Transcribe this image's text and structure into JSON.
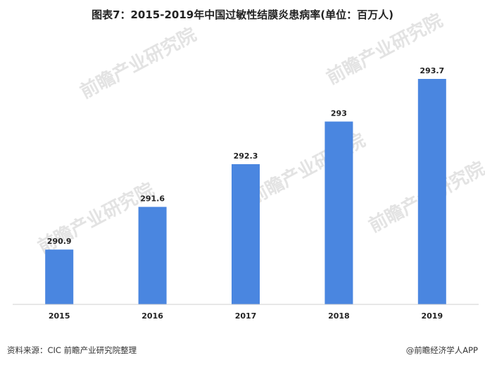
{
  "chart_data": {
    "type": "bar",
    "title": "图表7：2015-2019年中国过敏性结膜炎患病率(单位：百万人)",
    "categories": [
      "2015",
      "2016",
      "2017",
      "2018",
      "2019"
    ],
    "values": [
      290.9,
      291.6,
      292.3,
      293,
      293.7
    ],
    "value_labels": [
      "290.9",
      "291.6",
      "292.3",
      "293",
      "293.7"
    ],
    "ylim": [
      290,
      294
    ],
    "grid": false,
    "bar_color": "#4a86e0"
  },
  "footer": {
    "source": "资料来源：CIC 前瞻产业研究院整理",
    "brand": "@前瞻经济学人APP"
  },
  "watermark": {
    "text": "前瞻产业研究院"
  }
}
